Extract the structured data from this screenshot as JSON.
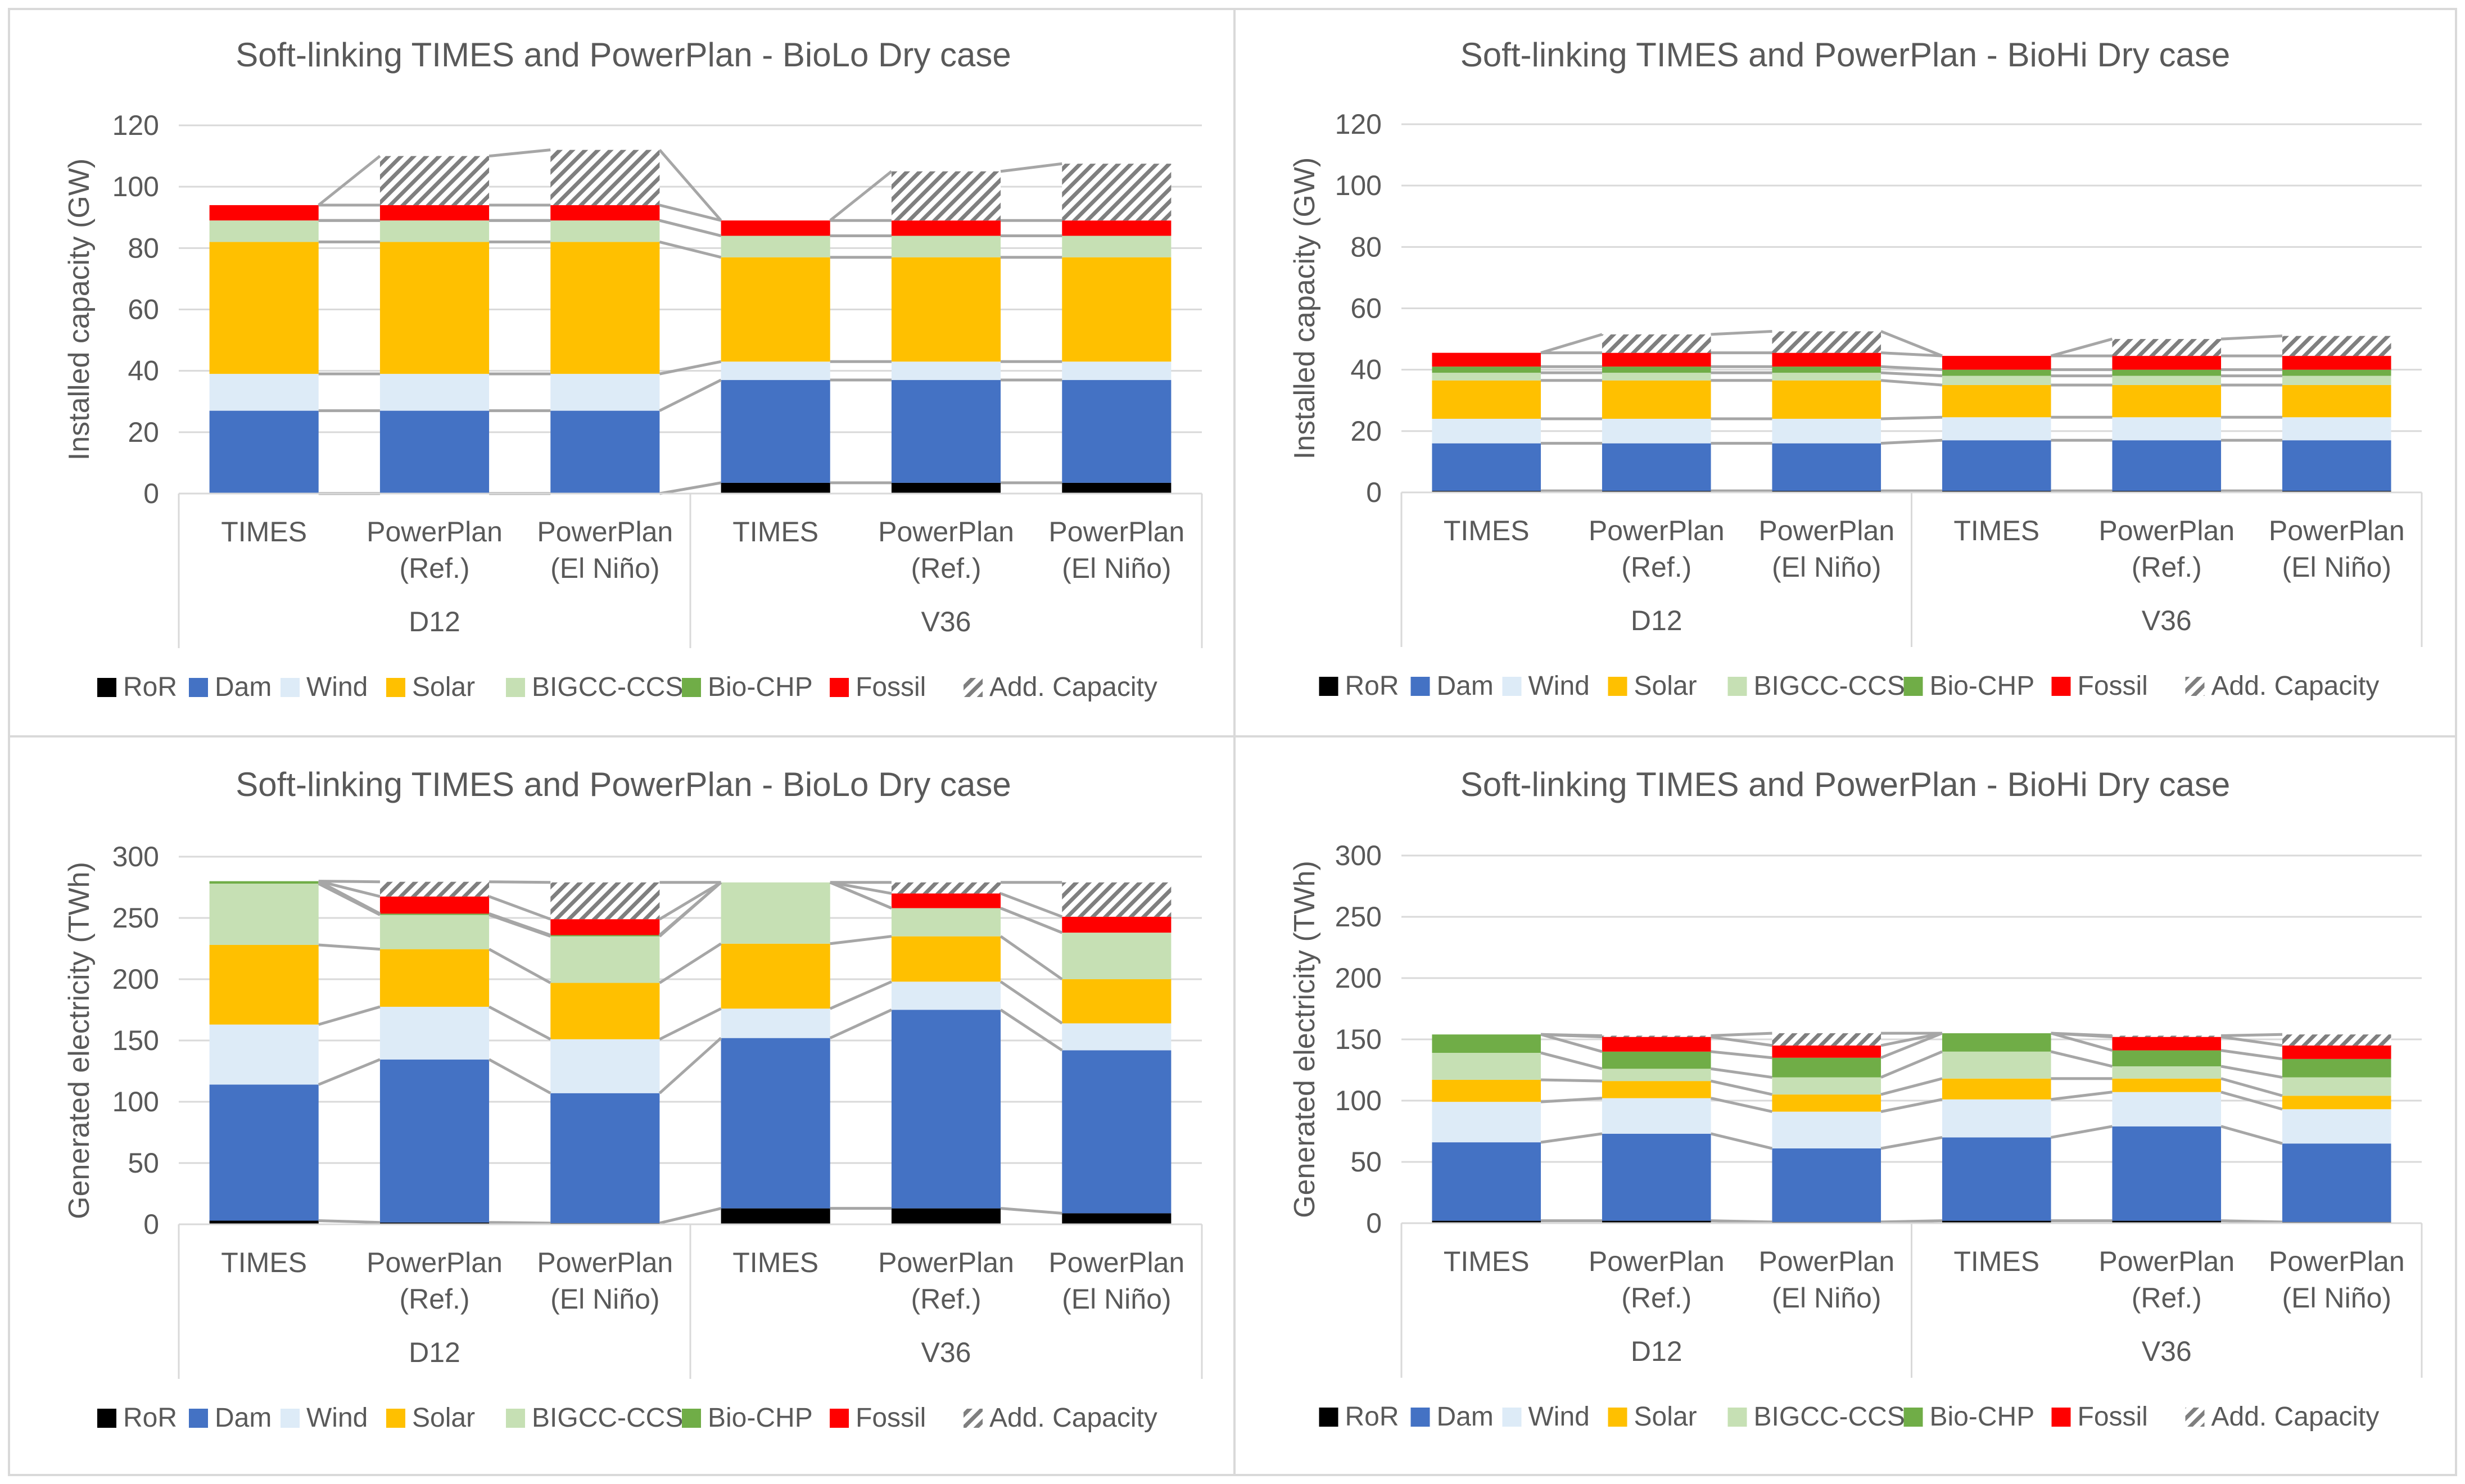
{
  "colors": {
    "RoR": "#000000",
    "Dam": "#4472C4",
    "Wind": "#DDEBF7",
    "Solar": "#FFC000",
    "BIGCC-CCS": "#C6E0B4",
    "Bio-CHP": "#70AD47",
    "Fossil": "#FF0000",
    "Add. Capacity": "hatch"
  },
  "chart_data": [
    {
      "type": "bar",
      "stacked": true,
      "title": "Soft-linking TIMES and PowerPlan - BioLo Dry case",
      "ylabel": "Installed capacity (GW)",
      "ylim": [
        0,
        120
      ],
      "yticks": [
        "0",
        "20",
        "40",
        "60",
        "80",
        "100",
        "120"
      ],
      "grid": true,
      "legend_position": "bottom",
      "categories": [
        "TIMES",
        "PowerPlan (Ref.)",
        "PowerPlan (El Niño)",
        "TIMES",
        "PowerPlan (Ref.)",
        "PowerPlan (El Niño)"
      ],
      "category_lines": [
        [
          "TIMES"
        ],
        [
          "PowerPlan",
          "(Ref.)"
        ],
        [
          "PowerPlan",
          "(El Niño)"
        ],
        [
          "TIMES"
        ],
        [
          "PowerPlan",
          "(Ref.)"
        ],
        [
          "PowerPlan",
          "(El Niño)"
        ]
      ],
      "groups": [
        "D12",
        "V36"
      ],
      "series": [
        {
          "name": "RoR",
          "values": [
            0,
            0,
            0,
            3.5,
            3.5,
            3.5
          ]
        },
        {
          "name": "Dam",
          "values": [
            27,
            27,
            27,
            33.5,
            33.5,
            33.5
          ]
        },
        {
          "name": "Wind",
          "values": [
            12,
            12,
            12,
            6,
            6,
            6
          ]
        },
        {
          "name": "Solar",
          "values": [
            43,
            43,
            43,
            34,
            34,
            34
          ]
        },
        {
          "name": "BIGCC-CCS",
          "values": [
            7,
            7,
            7,
            7,
            7,
            7
          ]
        },
        {
          "name": "Bio-CHP",
          "values": [
            0,
            0,
            0,
            0,
            0,
            0
          ]
        },
        {
          "name": "Fossil",
          "values": [
            5,
            5,
            5,
            5,
            5,
            5
          ]
        },
        {
          "name": "Add. Capacity",
          "values": [
            0,
            16,
            18,
            0,
            16,
            18.5
          ]
        }
      ]
    },
    {
      "type": "bar",
      "stacked": true,
      "title": "Soft-linking TIMES and PowerPlan - BioHi Dry case",
      "ylabel": "Installed capacity (GW)",
      "ylim": [
        0,
        120
      ],
      "yticks": [
        "0",
        "20",
        "40",
        "60",
        "80",
        "100",
        "120"
      ],
      "grid": true,
      "legend_position": "bottom",
      "categories": [
        "TIMES",
        "PowerPlan (Ref.)",
        "PowerPlan (El Niño)",
        "TIMES",
        "PowerPlan (Ref.)",
        "PowerPlan (El Niño)"
      ],
      "category_lines": [
        [
          "TIMES"
        ],
        [
          "PowerPlan",
          "(Ref.)"
        ],
        [
          "PowerPlan",
          "(El Niño)"
        ],
        [
          "TIMES"
        ],
        [
          "PowerPlan",
          "(Ref.)"
        ],
        [
          "PowerPlan",
          "(El Niño)"
        ]
      ],
      "groups": [
        "D12",
        "V36"
      ],
      "series": [
        {
          "name": "RoR",
          "values": [
            0.5,
            0.5,
            0.5,
            0.5,
            0.5,
            0.5
          ]
        },
        {
          "name": "Dam",
          "values": [
            15.5,
            15.5,
            15.5,
            16.5,
            16.5,
            16.5
          ]
        },
        {
          "name": "Wind",
          "values": [
            8,
            8,
            8,
            7.5,
            7.5,
            7.5
          ]
        },
        {
          "name": "Solar",
          "values": [
            12.5,
            12.5,
            12.5,
            10.5,
            10.5,
            10.5
          ]
        },
        {
          "name": "BIGCC-CCS",
          "values": [
            2.5,
            2.5,
            2.5,
            3,
            3,
            3
          ]
        },
        {
          "name": "Bio-CHP",
          "values": [
            2,
            2,
            2,
            2,
            2,
            2
          ]
        },
        {
          "name": "Fossil",
          "values": [
            4.5,
            4.5,
            4.5,
            4.5,
            4.5,
            4.5
          ]
        },
        {
          "name": "Add. Capacity",
          "values": [
            0,
            6,
            7,
            0,
            5.5,
            6.5
          ]
        }
      ]
    },
    {
      "type": "bar",
      "stacked": true,
      "title": "Soft-linking TIMES and PowerPlan - BioLo Dry case",
      "ylabel": "Generated electricity (TWh)",
      "ylim": [
        0,
        300
      ],
      "yticks": [
        "0",
        "50",
        "100",
        "150",
        "200",
        "250",
        "300"
      ],
      "grid": true,
      "legend_position": "bottom",
      "categories": [
        "TIMES",
        "PowerPlan (Ref.)",
        "PowerPlan (El Niño)",
        "TIMES",
        "PowerPlan (Ref.)",
        "PowerPlan (El Niño)"
      ],
      "category_lines": [
        [
          "TIMES"
        ],
        [
          "PowerPlan",
          "(Ref.)"
        ],
        [
          "PowerPlan",
          "(El Niño)"
        ],
        [
          "TIMES"
        ],
        [
          "PowerPlan",
          "(Ref.)"
        ],
        [
          "PowerPlan",
          "(El Niño)"
        ]
      ],
      "groups": [
        "D12",
        "V36"
      ],
      "series": [
        {
          "name": "RoR",
          "values": [
            3,
            1.5,
            1,
            13,
            13,
            9
          ]
        },
        {
          "name": "Dam",
          "values": [
            111,
            133,
            106,
            139,
            162,
            133
          ]
        },
        {
          "name": "Wind",
          "values": [
            49,
            43,
            44,
            24,
            23,
            22
          ]
        },
        {
          "name": "Solar",
          "values": [
            65,
            47,
            46,
            53,
            37,
            36
          ]
        },
        {
          "name": "BIGCC-CCS",
          "values": [
            50,
            28,
            38,
            50,
            23,
            38
          ]
        },
        {
          "name": "Bio-CHP",
          "values": [
            2,
            1,
            1,
            0,
            0,
            0
          ]
        },
        {
          "name": "Fossil",
          "values": [
            0,
            14,
            13,
            0,
            12,
            13
          ]
        },
        {
          "name": "Add. Capacity",
          "values": [
            0,
            12,
            30,
            0,
            9,
            28
          ]
        }
      ]
    },
    {
      "type": "bar",
      "stacked": true,
      "title": "Soft-linking TIMES and PowerPlan - BioHi Dry case",
      "ylabel": "Generated electricity (TWh)",
      "ylim": [
        0,
        300
      ],
      "yticks": [
        "0",
        "50",
        "100",
        "150",
        "200",
        "250",
        "300"
      ],
      "grid": true,
      "legend_position": "bottom",
      "categories": [
        "TIMES",
        "PowerPlan (Ref.)",
        "PowerPlan (El Niño)",
        "TIMES",
        "PowerPlan (Ref.)",
        "PowerPlan (El Niño)"
      ],
      "category_lines": [
        [
          "TIMES"
        ],
        [
          "PowerPlan",
          "(Ref.)"
        ],
        [
          "PowerPlan",
          "(El Niño)"
        ],
        [
          "TIMES"
        ],
        [
          "PowerPlan",
          "(Ref.)"
        ],
        [
          "PowerPlan",
          "(El Niño)"
        ]
      ],
      "groups": [
        "D12",
        "V36"
      ],
      "series": [
        {
          "name": "RoR",
          "values": [
            2,
            2,
            1,
            2,
            2,
            1
          ]
        },
        {
          "name": "Dam",
          "values": [
            64,
            71,
            60,
            68,
            77,
            64
          ]
        },
        {
          "name": "Wind",
          "values": [
            33,
            29,
            30,
            31,
            28,
            28
          ]
        },
        {
          "name": "Solar",
          "values": [
            18,
            14,
            14,
            17,
            11,
            11
          ]
        },
        {
          "name": "BIGCC-CCS",
          "values": [
            22,
            10,
            14,
            22,
            10,
            15
          ]
        },
        {
          "name": "Bio-CHP",
          "values": [
            15,
            14,
            16,
            15,
            13,
            15
          ]
        },
        {
          "name": "Fossil",
          "values": [
            0,
            12,
            10,
            0,
            11,
            11
          ]
        },
        {
          "name": "Add. Capacity",
          "values": [
            0,
            1,
            10,
            0,
            1,
            9
          ]
        }
      ]
    }
  ]
}
